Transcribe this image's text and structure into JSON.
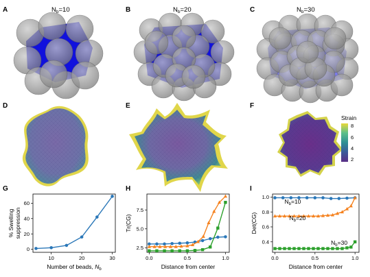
{
  "panel_labels": [
    "A",
    "B",
    "C",
    "D",
    "E",
    "F",
    "G",
    "H",
    "I"
  ],
  "top_row": {
    "titles": [
      {
        "base": "N",
        "sub": "b",
        "rest": "=10"
      },
      {
        "base": "N",
        "sub": "b",
        "rest": "=20"
      },
      {
        "base": "N",
        "sub": "b",
        "rest": "=30"
      }
    ]
  },
  "colorbar": {
    "label": "Strain",
    "ticks": [
      "8",
      "6",
      "4",
      "2"
    ],
    "colors": [
      "#e8d83a",
      "#5cc08a",
      "#2f8f94",
      "#3b5a9a",
      "#5a2e86"
    ]
  },
  "colors": {
    "core_blue": "#1111dd",
    "bead_gray": "#8a8a8a",
    "series_blue": "#2a77b8",
    "series_orange": "#f5821f",
    "series_green": "#2ca02c"
  },
  "chart_data": [
    {
      "panel": "G",
      "type": "line",
      "xlabel": {
        "base": "Number of beads, ",
        "italic": "N",
        "sub": "b"
      },
      "ylabel_lines": [
        "% Swelling",
        "suppression"
      ],
      "xlim": [
        4,
        31
      ],
      "ylim": [
        -4,
        72
      ],
      "xticks": [
        10,
        20,
        30
      ],
      "yticks": [
        0,
        20,
        40,
        60
      ],
      "series": [
        {
          "color": "#2a77b8",
          "marker": "circle",
          "x": [
            5,
            10,
            15,
            20,
            25,
            30
          ],
          "y": [
            1,
            2,
            5,
            16,
            42,
            69
          ]
        }
      ]
    },
    {
      "panel": "H",
      "type": "line",
      "xlabel": {
        "base": "Distance from center"
      },
      "ylabel_lines": [
        "Tr(CG)"
      ],
      "xlim": [
        -0.03,
        1.05
      ],
      "ylim": [
        1.9,
        9.6
      ],
      "xticks": [
        0.0,
        0.5,
        1.0
      ],
      "xtick_labels": [
        "0.0",
        "0.5",
        "1.0"
      ],
      "yticks": [
        2.5,
        5.0,
        7.5
      ],
      "ytick_labels": [
        "2.5",
        "5.0",
        "7.5"
      ],
      "series": [
        {
          "color": "#2a77b8",
          "marker": "circle",
          "x": [
            0.0,
            0.1,
            0.2,
            0.3,
            0.4,
            0.5,
            0.6,
            0.7,
            0.8,
            0.9,
            1.0
          ],
          "y": [
            3.0,
            3.0,
            3.0,
            3.05,
            3.1,
            3.15,
            3.25,
            3.45,
            3.7,
            3.9,
            3.95
          ]
        },
        {
          "color": "#f5821f",
          "marker": "triangle",
          "x": [
            0.0,
            0.07,
            0.14,
            0.21,
            0.28,
            0.35,
            0.42,
            0.5,
            0.57,
            0.64,
            0.71,
            0.78,
            0.85,
            0.92,
            1.0
          ],
          "y": [
            2.65,
            2.65,
            2.65,
            2.65,
            2.65,
            2.65,
            2.7,
            2.75,
            2.9,
            3.3,
            4.0,
            5.8,
            7.3,
            8.5,
            9.3
          ]
        },
        {
          "color": "#2ca02c",
          "marker": "square",
          "x": [
            0.0,
            0.1,
            0.2,
            0.3,
            0.4,
            0.5,
            0.6,
            0.7,
            0.8,
            0.9,
            1.0
          ],
          "y": [
            2.1,
            2.1,
            2.1,
            2.1,
            2.1,
            2.1,
            2.15,
            2.25,
            2.6,
            5.1,
            8.5
          ]
        }
      ]
    },
    {
      "panel": "I",
      "type": "line",
      "xlabel": {
        "base": "Distance from center"
      },
      "ylabel_lines": [
        "Det(CG)"
      ],
      "xlim": [
        -0.03,
        1.05
      ],
      "ylim": [
        0.26,
        1.04
      ],
      "xticks": [
        0.0,
        0.5,
        1.0
      ],
      "xtick_labels": [
        "0.0",
        "0.5",
        "1.0"
      ],
      "yticks": [
        0.4,
        0.6,
        0.8,
        1.0
      ],
      "ytick_labels": [
        "0.4",
        "0.6",
        "0.8",
        "1.0"
      ],
      "annotations": [
        {
          "base": "N",
          "sub": "b",
          "rest": "=10",
          "x": 0.12,
          "y": 0.91
        },
        {
          "base": "N",
          "sub": "b",
          "rest": "=20",
          "x": 0.18,
          "y": 0.69
        },
        {
          "base": "N",
          "sub": "b",
          "rest": "=30",
          "x": 0.7,
          "y": 0.36
        }
      ],
      "series": [
        {
          "color": "#2a77b8",
          "marker": "circle",
          "x": [
            0.0,
            0.1,
            0.2,
            0.3,
            0.4,
            0.5,
            0.6,
            0.7,
            0.8,
            0.9,
            1.0
          ],
          "y": [
            0.99,
            0.99,
            0.99,
            0.99,
            0.99,
            0.99,
            0.99,
            0.98,
            0.98,
            0.985,
            0.99
          ]
        },
        {
          "color": "#f5821f",
          "marker": "triangle",
          "x": [
            0.0,
            0.06,
            0.12,
            0.18,
            0.24,
            0.3,
            0.36,
            0.42,
            0.48,
            0.54,
            0.6,
            0.66,
            0.72,
            0.78,
            0.84,
            0.9,
            0.95,
            1.0
          ],
          "y": [
            0.745,
            0.745,
            0.745,
            0.745,
            0.745,
            0.745,
            0.745,
            0.745,
            0.745,
            0.745,
            0.75,
            0.755,
            0.76,
            0.78,
            0.8,
            0.84,
            0.88,
            0.99
          ]
        },
        {
          "color": "#2ca02c",
          "marker": "square",
          "x": [
            0.0,
            0.06,
            0.12,
            0.18,
            0.24,
            0.3,
            0.36,
            0.42,
            0.48,
            0.54,
            0.6,
            0.66,
            0.72,
            0.78,
            0.84,
            0.9,
            0.95,
            1.0
          ],
          "y": [
            0.31,
            0.31,
            0.31,
            0.31,
            0.31,
            0.31,
            0.31,
            0.31,
            0.31,
            0.31,
            0.31,
            0.31,
            0.31,
            0.31,
            0.31,
            0.32,
            0.33,
            0.4
          ]
        }
      ]
    }
  ]
}
